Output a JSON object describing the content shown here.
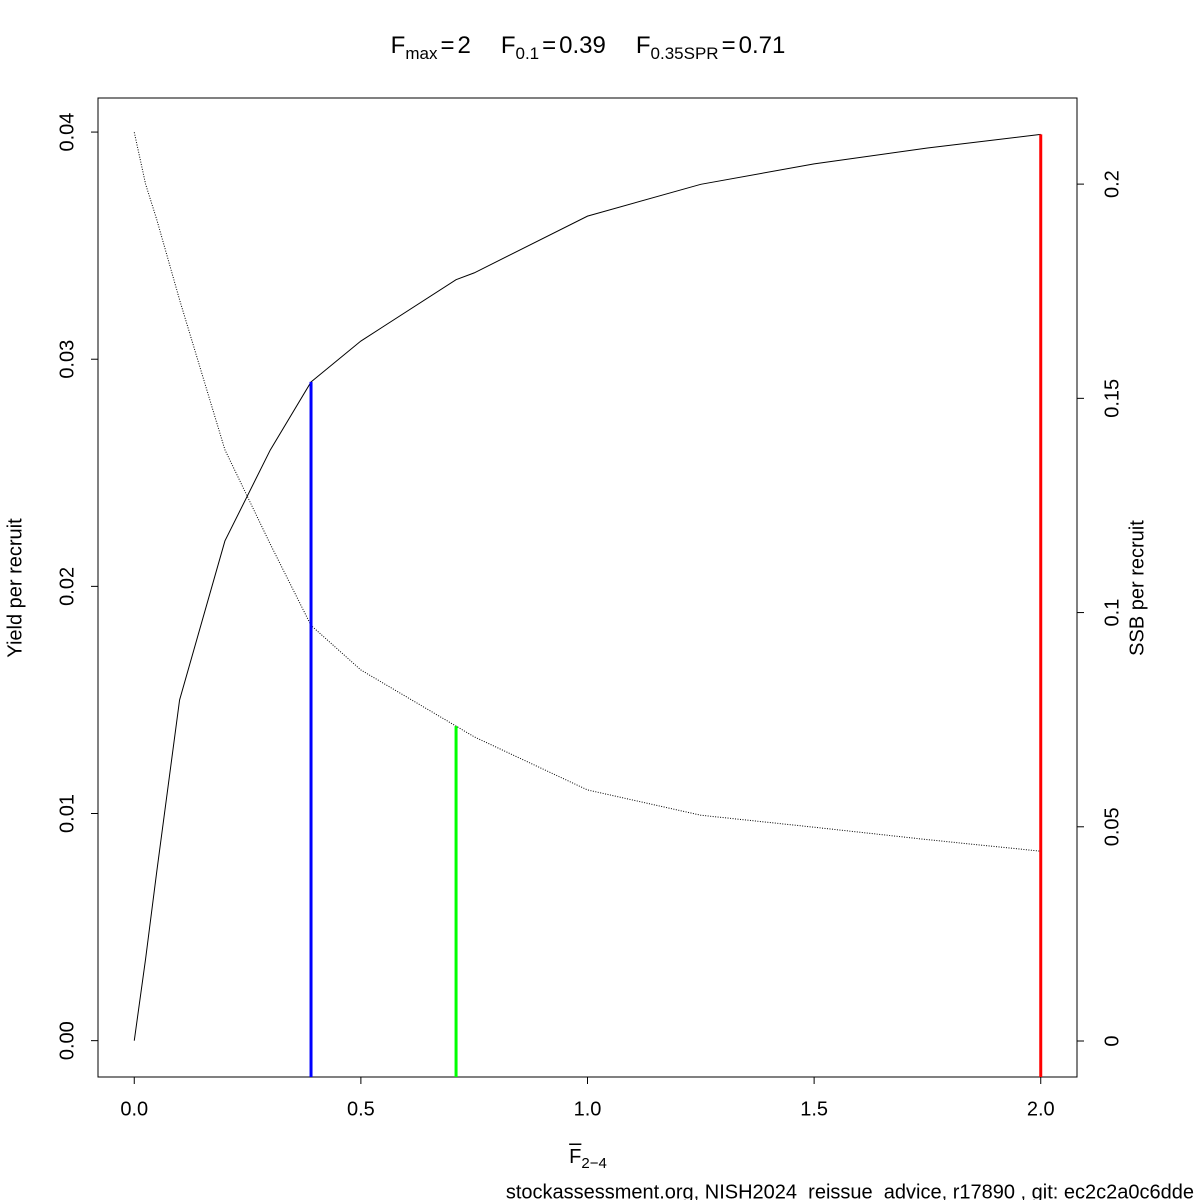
{
  "chart_data": {
    "type": "line",
    "title_parts": [
      {
        "base": "F",
        "sub": "max",
        "relation": "=",
        "value": 2
      },
      {
        "base": "F",
        "sub": "0.1",
        "relation": "=",
        "value": 0.39
      },
      {
        "base": "F",
        "sub": "0.35SPR",
        "relation": "=",
        "value": 0.71
      }
    ],
    "xlabel": {
      "base": "F",
      "sub": "2−4",
      "overline": true
    },
    "ylabel": "Yield per recruit",
    "y2label": "SSB per recruit",
    "footer": "stockassessment.org, NISH2024_reissue_advice, r17890 , git: ec2c2a0c6dde",
    "x": [
      0,
      0.025,
      0.05,
      0.1,
      0.2,
      0.3,
      0.39,
      0.5,
      0.71,
      0.75,
      1.0,
      1.25,
      1.5,
      1.75,
      2.0
    ],
    "series": [
      {
        "name": "Yield per recruit",
        "color": "#000000",
        "dash": "solid",
        "values": [
          0,
          0.0036,
          0.0075,
          0.015,
          0.022,
          0.026,
          0.029,
          0.0308,
          0.0335,
          0.0338,
          0.0363,
          0.0377,
          0.0386,
          0.0393,
          0.0399
        ]
      },
      {
        "name": "SSB per recruit",
        "color": "#000000",
        "dash": "dotted",
        "axis": "y2",
        "values": [
          0.2121,
          0.2,
          0.1916,
          0.173,
          0.138,
          0.116,
          0.097,
          0.0866,
          0.0735,
          0.071,
          0.0586,
          0.0527,
          0.0499,
          0.047,
          0.0443
        ]
      }
    ],
    "reference_lines": [
      {
        "x": 0.39,
        "y": 0.029,
        "color": "#0000ff"
      },
      {
        "x": 0.71,
        "y": 0.0735,
        "axis": "y2",
        "color": "#00ff00"
      },
      {
        "x": 2.0,
        "y": 0.0399,
        "color": "#ff0000"
      }
    ],
    "xlim": [
      -0.08,
      2.08
    ],
    "ylim": [
      -0.0016,
      0.0415
    ],
    "y2lim": [
      -0.0084,
      0.2201
    ],
    "xticks": [
      {
        "value": 0,
        "label": "0.0"
      },
      {
        "value": 0.5,
        "label": "0.5"
      },
      {
        "value": 1,
        "label": "1.0"
      },
      {
        "value": 1.5,
        "label": "1.5"
      },
      {
        "value": 2,
        "label": "2.0"
      }
    ],
    "yticks": [
      {
        "value": 0,
        "label": "0.00"
      },
      {
        "value": 0.01,
        "label": "0.01"
      },
      {
        "value": 0.02,
        "label": "0.02"
      },
      {
        "value": 0.03,
        "label": "0.03"
      },
      {
        "value": 0.04,
        "label": "0.04"
      }
    ],
    "y2ticks": [
      0,
      0.05,
      0.1,
      0.15,
      0.2
    ],
    "grid": false
  }
}
